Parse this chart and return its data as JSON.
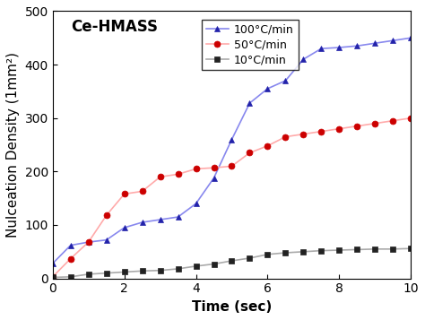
{
  "title": "Ce-HMASS",
  "xlabel": "Time (sec)",
  "ylabel": "Nulceation Density (1mm²)",
  "xlim": [
    0,
    10
  ],
  "ylim": [
    0,
    500
  ],
  "xticks": [
    0,
    2,
    4,
    6,
    8,
    10
  ],
  "yticks": [
    0,
    100,
    200,
    300,
    400,
    500
  ],
  "series": [
    {
      "label": "100°C/min",
      "line_color": "#8888ee",
      "marker_color": "#2222aa",
      "marker": "^",
      "x": [
        0.0,
        0.5,
        1.0,
        1.5,
        2.0,
        2.5,
        3.0,
        3.5,
        4.0,
        4.5,
        5.0,
        5.5,
        6.0,
        6.5,
        7.0,
        7.5,
        8.0,
        8.5,
        9.0,
        9.5,
        10.0
      ],
      "y": [
        28,
        62,
        68,
        72,
        95,
        105,
        110,
        115,
        140,
        188,
        260,
        328,
        355,
        370,
        410,
        430,
        432,
        435,
        440,
        445,
        450
      ]
    },
    {
      "label": "50°C/min",
      "line_color": "#ffaaaa",
      "marker_color": "#cc0000",
      "marker": "o",
      "x": [
        0.0,
        0.5,
        1.0,
        1.5,
        2.0,
        2.5,
        3.0,
        3.5,
        4.0,
        4.5,
        5.0,
        5.5,
        6.0,
        6.5,
        7.0,
        7.5,
        8.0,
        8.5,
        9.0,
        9.5,
        10.0
      ],
      "y": [
        3,
        37,
        68,
        118,
        158,
        163,
        190,
        195,
        205,
        207,
        210,
        235,
        248,
        265,
        270,
        275,
        280,
        285,
        290,
        295,
        300
      ]
    },
    {
      "label": "10°C/min",
      "line_color": "#aaaaaa",
      "marker_color": "#222222",
      "marker": "s",
      "x": [
        0.0,
        0.5,
        1.0,
        1.5,
        2.0,
        2.5,
        3.0,
        3.5,
        4.0,
        4.5,
        5.0,
        5.5,
        6.0,
        6.5,
        7.0,
        7.5,
        8.0,
        8.5,
        9.0,
        9.5,
        10.0
      ],
      "y": [
        2,
        3,
        8,
        10,
        12,
        14,
        15,
        18,
        23,
        27,
        33,
        38,
        45,
        48,
        50,
        52,
        53,
        54,
        55,
        55,
        56
      ]
    }
  ],
  "background_color": "#ffffff",
  "grid": false,
  "title_fontsize": 12,
  "label_fontsize": 11,
  "tick_fontsize": 10,
  "legend_fontsize": 9,
  "markersize": 5,
  "linewidth": 1.2
}
